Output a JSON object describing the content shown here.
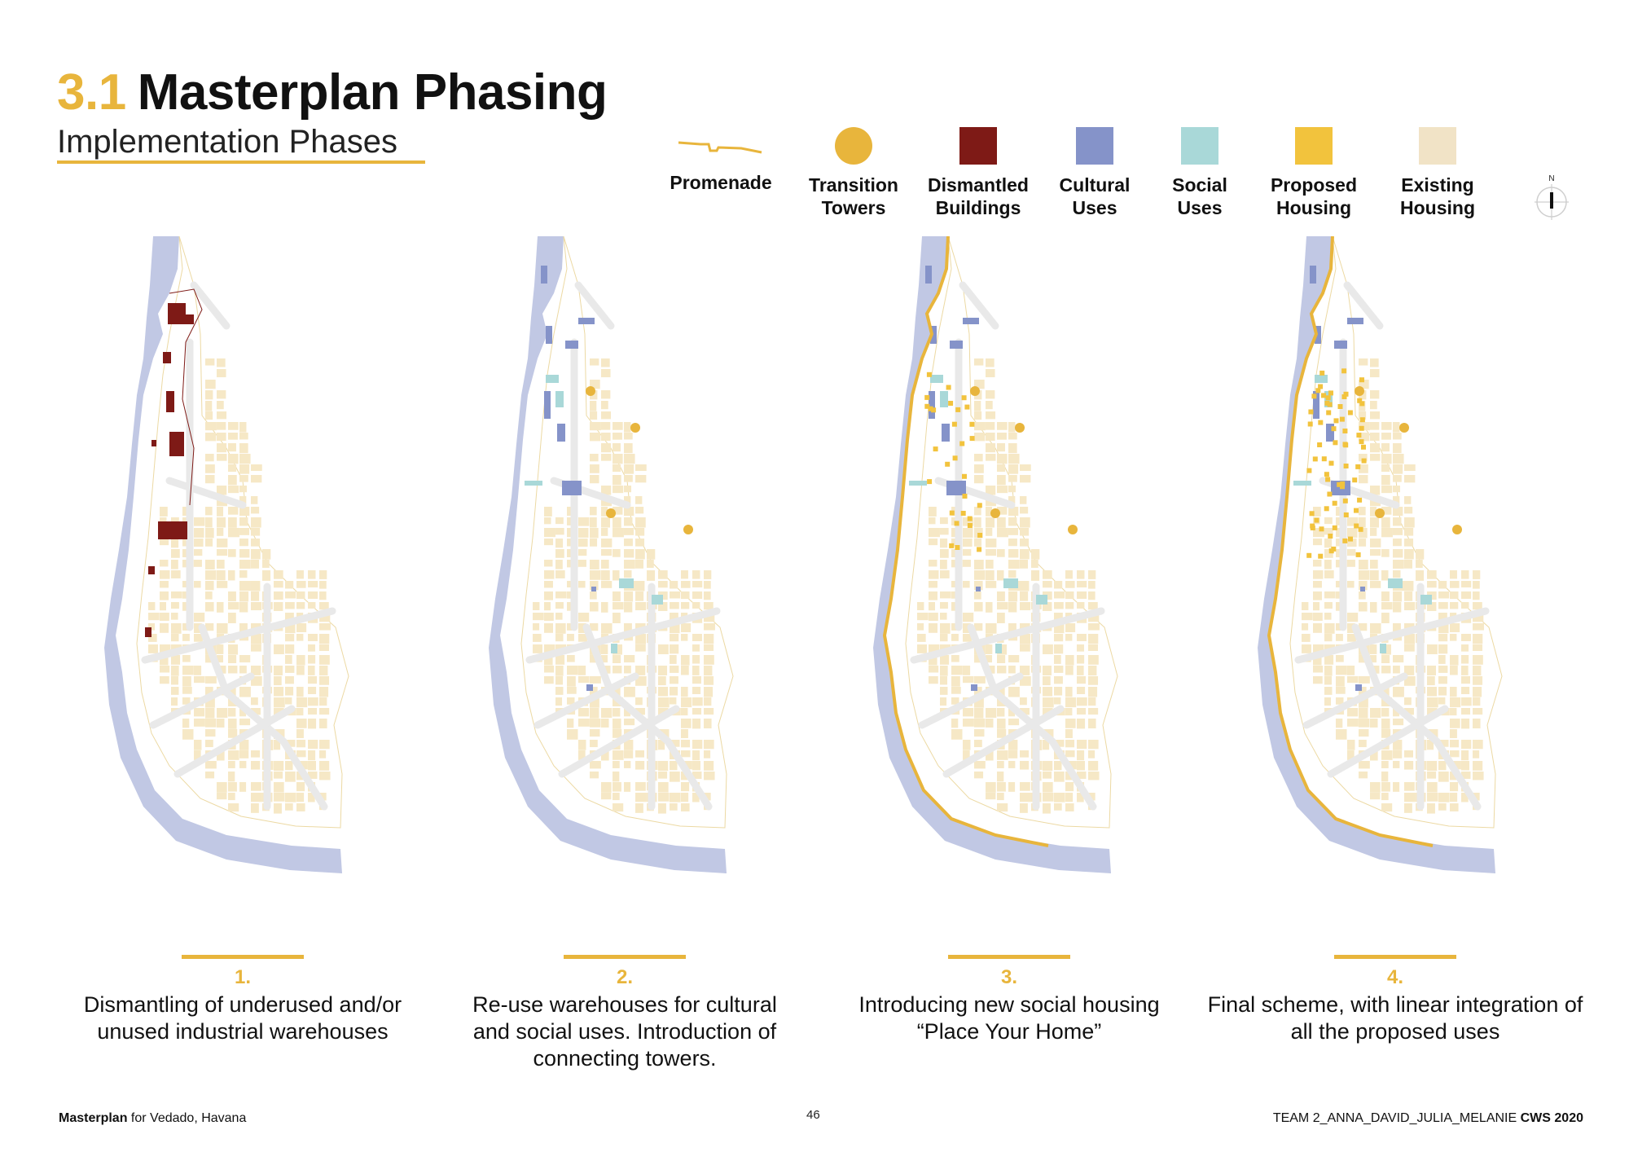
{
  "header": {
    "section_number": "3.1",
    "title": "Masterplan Phasing",
    "subtitle": "Implementation Phases"
  },
  "legend": [
    {
      "label": "Promenade",
      "shape": "line",
      "color": "#e8b53c"
    },
    {
      "label": "Transition\nTowers",
      "shape": "circle",
      "color": "#e8b53c"
    },
    {
      "label": "Dismantled\nBuildings",
      "shape": "square",
      "color": "#7e1a16"
    },
    {
      "label": "Cultural\nUses",
      "shape": "square",
      "color": "#8593c9"
    },
    {
      "label": "Social\nUses",
      "shape": "square",
      "color": "#a9d8d8"
    },
    {
      "label": "Proposed\nHousing",
      "shape": "square",
      "color": "#f2c33d"
    },
    {
      "label": "Existing\nHousing",
      "shape": "square",
      "color": "#f1e3c6"
    }
  ],
  "compass": {
    "label": "N"
  },
  "phases": [
    {
      "number": "1.",
      "description": "Dismantling of underused and/or unused industrial warehouses"
    },
    {
      "number": "2.",
      "description": "Re-use warehouses for cultural and social uses. Introduction of connecting towers."
    },
    {
      "number": "3.",
      "description": "Introducing new social housing “Place Your Home”"
    },
    {
      "number": "4.",
      "description": "Final scheme, with linear integration of all the proposed uses"
    }
  ],
  "footer": {
    "left_bold": "Masterplan",
    "left_rest": " for Vedado, Havana",
    "page": "46",
    "right_text": "TEAM 2_ANNA_DAVID_JULIA_MELANIE ",
    "right_bold": "CWS 2020"
  },
  "colors": {
    "water": "#c1c8e4",
    "road": "#e9e9e9",
    "existing": "#f6e8c6",
    "accent": "#e8b53c"
  }
}
